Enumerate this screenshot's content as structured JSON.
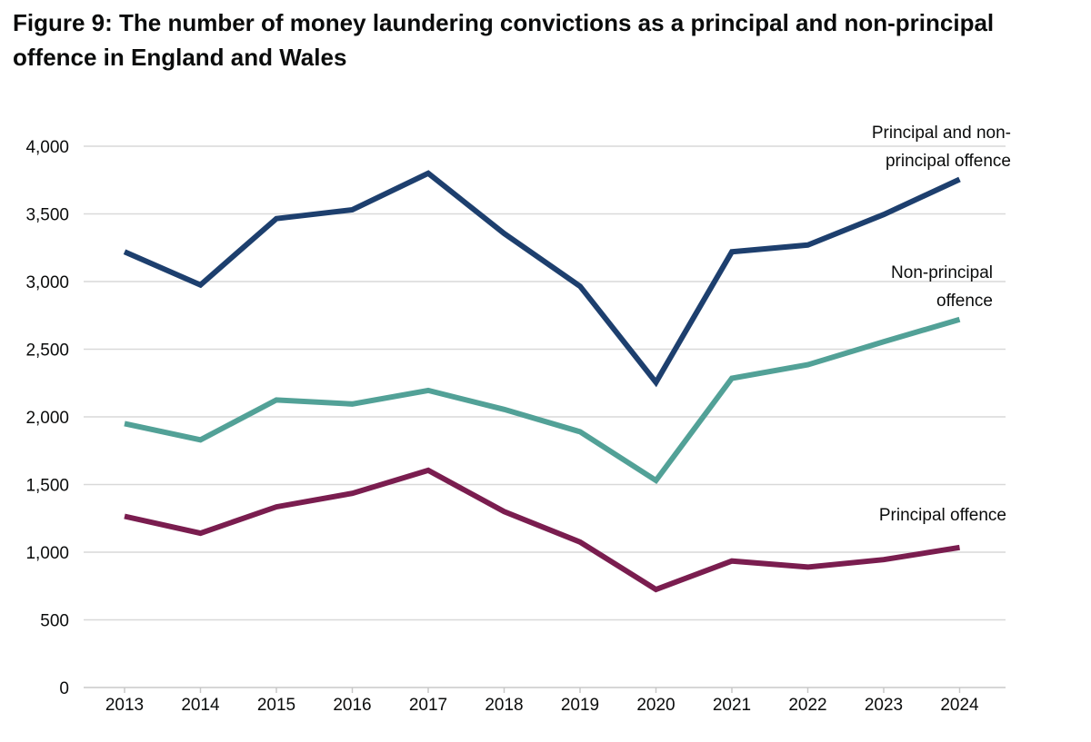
{
  "chart_data": {
    "type": "line",
    "title": "Figure 9: The number of money laundering convictions as a principal and non-principal offence in England and Wales",
    "xlabel": "",
    "ylabel": "",
    "ylim": [
      0,
      4000
    ],
    "yticks": [
      0,
      500,
      1000,
      1500,
      2000,
      2500,
      3000,
      3500,
      4000
    ],
    "ytick_labels": [
      "0",
      "500",
      "1,000",
      "1,500",
      "2,000",
      "2,500",
      "3,000",
      "3,500",
      "4,000"
    ],
    "grid": true,
    "categories": [
      "2013",
      "2014",
      "2015",
      "2016",
      "2017",
      "2018",
      "2019",
      "2020",
      "2021",
      "2022",
      "2023",
      "2024"
    ],
    "series": [
      {
        "name": "Principal and non-principal offence",
        "label_lines": [
          "Principal and non-",
          "principal offence"
        ],
        "color": "#1d3f6e",
        "values": [
          3220,
          2975,
          3465,
          3530,
          3800,
          3355,
          2965,
          2255,
          3220,
          3270,
          3495,
          3755
        ]
      },
      {
        "name": "Non-principal offence",
        "label_lines": [
          "Non-principal",
          "offence"
        ],
        "color": "#52a197",
        "values": [
          1950,
          1830,
          2125,
          2095,
          2195,
          2055,
          1890,
          1530,
          2285,
          2385,
          2555,
          2720
        ]
      },
      {
        "name": "Principal offence",
        "label_lines": [
          "Principal offence"
        ],
        "color": "#7a1d4f",
        "values": [
          1265,
          1140,
          1335,
          1435,
          1605,
          1300,
          1075,
          725,
          935,
          890,
          945,
          1035
        ]
      }
    ]
  }
}
